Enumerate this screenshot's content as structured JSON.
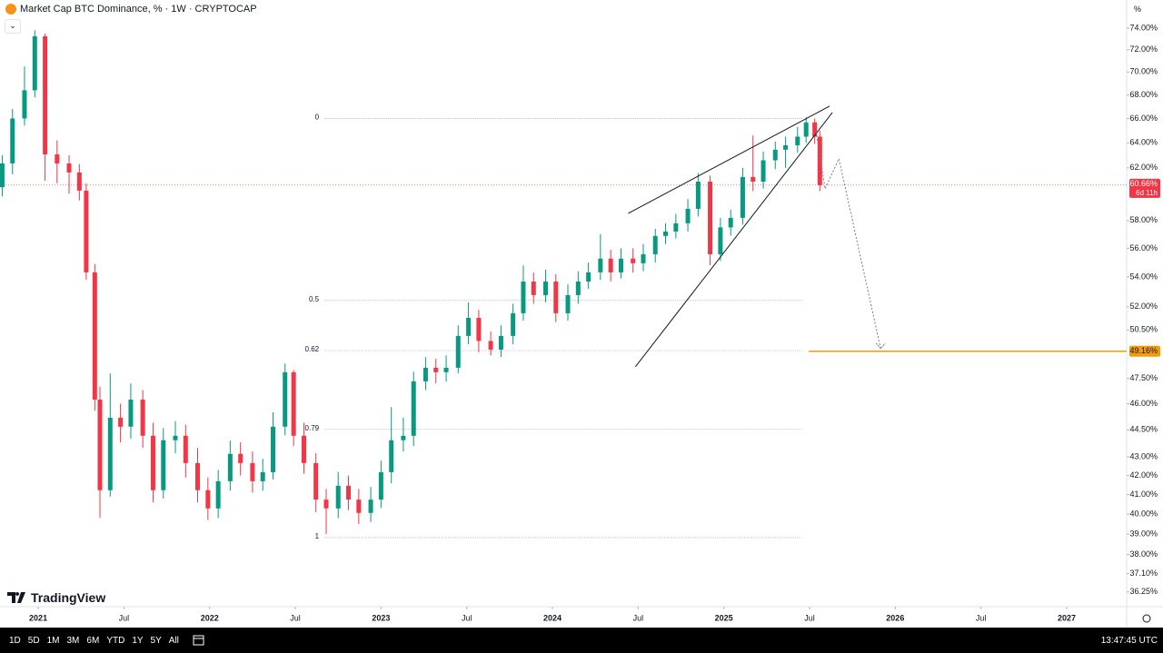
{
  "header": {
    "title": "Market Cap BTC Dominance, % · 1W · CRYPTOCAP",
    "scale_button": "%"
  },
  "chart_data": {
    "type": "candlestick",
    "x": [
      2020.79,
      2020.85,
      2020.92,
      2020.98,
      2021.04,
      2021.11,
      2021.18,
      2021.24,
      2021.28,
      2021.33,
      2021.36,
      2021.42,
      2021.48,
      2021.54,
      2021.61,
      2021.67,
      2021.73,
      2021.8,
      2021.86,
      2021.93,
      2021.99,
      2022.05,
      2022.12,
      2022.18,
      2022.25,
      2022.31,
      2022.37,
      2022.44,
      2022.49,
      2022.55,
      2022.62,
      2022.68,
      2022.75,
      2022.81,
      2022.87,
      2022.94,
      2023.0,
      2023.06,
      2023.13,
      2023.19,
      2023.26,
      2023.32,
      2023.38,
      2023.45,
      2023.51,
      2023.57,
      2023.64,
      2023.7,
      2023.77,
      2023.83,
      2023.89,
      2023.96,
      2024.02,
      2024.09,
      2024.15,
      2024.21,
      2024.28,
      2024.34,
      2024.4,
      2024.47,
      2024.53,
      2024.6,
      2024.66,
      2024.72,
      2024.79,
      2024.85,
      2024.92,
      2024.98,
      2025.04,
      2025.11,
      2025.17,
      2025.23,
      2025.3,
      2025.36,
      2025.43,
      2025.48,
      2025.53,
      2025.56
    ],
    "open": [
      60.5,
      62.35,
      66.0,
      68.4,
      73.24,
      63.07,
      62.35,
      61.64,
      60.24,
      54.32,
      46.24,
      41.23,
      45.19,
      44.68,
      46.24,
      44.17,
      41.23,
      43.92,
      44.17,
      42.67,
      41.23,
      40.29,
      41.7,
      43.17,
      42.67,
      41.7,
      42.18,
      44.68,
      47.87,
      44.17,
      42.67,
      40.74,
      40.29,
      41.46,
      40.74,
      40.06,
      40.74,
      42.18,
      43.92,
      44.17,
      47.32,
      48.14,
      47.87,
      48.14,
      50.12,
      51.28,
      49.8,
      49.26,
      50.12,
      51.58,
      53.69,
      52.78,
      53.69,
      51.58,
      52.78,
      53.69,
      54.32,
      55.27,
      54.32,
      55.27,
      54.95,
      55.58,
      56.88,
      57.2,
      57.8,
      58.87,
      60.93,
      55.58,
      57.5,
      58.2,
      61.29,
      60.93,
      62.6,
      63.44,
      63.8,
      64.5,
      65.67,
      64.5
    ],
    "high": [
      63.0,
      66.8,
      70.5,
      73.8,
      73.5,
      64.2,
      63.0,
      62.3,
      60.8,
      54.9,
      47.0,
      47.8,
      46.0,
      47.2,
      46.8,
      44.9,
      44.6,
      45.0,
      44.8,
      43.5,
      41.9,
      42.3,
      43.9,
      43.8,
      43.3,
      42.9,
      45.5,
      48.4,
      48.0,
      44.9,
      43.2,
      41.3,
      42.2,
      42.0,
      41.3,
      41.4,
      42.8,
      45.8,
      45.2,
      47.9,
      48.8,
      48.7,
      48.9,
      50.8,
      52.3,
      51.8,
      50.4,
      50.8,
      52.2,
      54.8,
      54.3,
      54.5,
      54.2,
      53.5,
      54.4,
      55.0,
      57.0,
      55.9,
      56.0,
      56.0,
      56.3,
      57.4,
      57.8,
      58.5,
      59.6,
      61.6,
      61.4,
      58.2,
      58.8,
      62.0,
      64.6,
      63.3,
      64.1,
      64.5,
      65.3,
      66.1,
      66.0,
      65.0
    ],
    "low": [
      59.8,
      61.5,
      65.4,
      67.8,
      61.0,
      60.8,
      60.0,
      59.5,
      53.8,
      45.6,
      39.8,
      40.9,
      43.8,
      44.0,
      43.5,
      40.6,
      40.8,
      43.2,
      41.9,
      40.6,
      39.7,
      39.8,
      41.2,
      42.0,
      41.1,
      41.2,
      41.8,
      44.2,
      43.6,
      42.1,
      40.1,
      39.0,
      39.8,
      40.2,
      39.5,
      39.6,
      40.3,
      41.6,
      43.3,
      43.6,
      46.8,
      47.2,
      47.3,
      47.8,
      49.6,
      49.1,
      48.9,
      48.8,
      49.6,
      51.1,
      52.2,
      52.3,
      51.0,
      51.1,
      52.2,
      53.2,
      53.8,
      53.7,
      53.9,
      54.3,
      54.4,
      55.0,
      56.3,
      56.7,
      57.2,
      58.3,
      54.8,
      55.1,
      56.9,
      57.7,
      60.2,
      60.4,
      61.9,
      62.0,
      63.2,
      64.0,
      63.9,
      60.2
    ],
    "close": [
      62.35,
      66.0,
      68.4,
      73.24,
      63.07,
      62.35,
      61.64,
      60.24,
      54.32,
      46.24,
      41.23,
      45.19,
      44.68,
      46.24,
      44.17,
      41.23,
      43.92,
      44.17,
      42.67,
      41.23,
      40.29,
      41.7,
      43.17,
      42.67,
      41.7,
      42.18,
      44.68,
      47.87,
      44.17,
      42.67,
      40.74,
      40.29,
      41.46,
      40.74,
      40.06,
      40.74,
      42.18,
      43.92,
      44.17,
      47.32,
      48.14,
      47.87,
      48.14,
      50.12,
      51.28,
      49.8,
      49.26,
      50.12,
      51.58,
      53.69,
      52.78,
      53.69,
      51.58,
      52.78,
      53.69,
      54.32,
      55.27,
      54.32,
      55.27,
      54.95,
      55.58,
      56.88,
      57.2,
      57.8,
      58.87,
      60.93,
      55.58,
      57.5,
      58.2,
      61.29,
      60.93,
      62.6,
      63.44,
      63.8,
      64.5,
      65.67,
      64.5,
      60.66
    ],
    "up_color": "#089981",
    "down_color": "#f23645",
    "log_scale": true,
    "ylim": [
      35.7,
      76.68
    ],
    "yticks": [
      {
        "value": 74,
        "label": "74.00%"
      },
      {
        "value": 72,
        "label": "72.00%"
      },
      {
        "value": 70,
        "label": "70.00%"
      },
      {
        "value": 68,
        "label": "68.00%"
      },
      {
        "value": 66,
        "label": "66.00%"
      },
      {
        "value": 64,
        "label": "64.00%"
      },
      {
        "value": 62,
        "label": "62.00%"
      },
      {
        "value": 58,
        "label": "58.00%"
      },
      {
        "value": 56,
        "label": "56.00%"
      },
      {
        "value": 54,
        "label": "54.00%"
      },
      {
        "value": 52,
        "label": "52.00%"
      },
      {
        "value": 50.5,
        "label": "50.50%"
      },
      {
        "value": 47.5,
        "label": "47.50%"
      },
      {
        "value": 46,
        "label": "46.00%"
      },
      {
        "value": 44.5,
        "label": "44.50%"
      },
      {
        "value": 43,
        "label": "43.00%"
      },
      {
        "value": 42,
        "label": "42.00%"
      },
      {
        "value": 41,
        "label": "41.00%"
      },
      {
        "value": 40,
        "label": "40.00%"
      },
      {
        "value": 39,
        "label": "39.00%"
      },
      {
        "value": 38,
        "label": "38.00%"
      },
      {
        "value": 37.1,
        "label": "37.10%"
      },
      {
        "value": 36.25,
        "label": "36.25%"
      }
    ],
    "xlim": [
      2020.777,
      2027.35
    ],
    "xticks": [
      {
        "value": 2021,
        "label": "2021"
      },
      {
        "value": 2021.5,
        "label": "Jul"
      },
      {
        "value": 2022,
        "label": "2022"
      },
      {
        "value": 2022.5,
        "label": "Jul"
      },
      {
        "value": 2023,
        "label": "2023"
      },
      {
        "value": 2023.5,
        "label": "Jul"
      },
      {
        "value": 2024,
        "label": "2024"
      },
      {
        "value": 2024.5,
        "label": "Jul"
      },
      {
        "value": 2025,
        "label": "2025"
      },
      {
        "value": 2025.5,
        "label": "Jul"
      },
      {
        "value": 2026,
        "label": "2026"
      },
      {
        "value": 2026.5,
        "label": "Jul"
      },
      {
        "value": 2027,
        "label": "2027"
      }
    ],
    "last_price": {
      "value": 60.66,
      "label": "60.66%",
      "countdown": "6d 11h",
      "color": "#f23645"
    },
    "target": {
      "value": 49.16,
      "label": "49.16%",
      "color": "#f59d00",
      "x_start": 2025.495
    },
    "fib": {
      "levels": [
        0,
        0.5,
        0.62,
        0.79,
        1
      ],
      "prices": [
        66.0,
        52.42,
        49.2,
        44.53,
        38.83
      ],
      "x": [
        2022.67,
        2025.46
      ]
    },
    "trendlines": [
      {
        "x": [
          2024.442,
          2025.617
        ],
        "y": [
          58.53,
          67.04
        ]
      },
      {
        "x": [
          2024.484,
          2025.633
        ],
        "y": [
          48.2,
          66.5
        ]
      }
    ],
    "projection": {
      "x": [
        2025.538,
        2025.591,
        2025.671,
        2025.915
      ],
      "y": [
        64.9,
        60.38,
        62.72,
        49.32
      ]
    }
  },
  "footer": {
    "logo": "TradingView",
    "ranges": [
      "1D",
      "5D",
      "1M",
      "3M",
      "6M",
      "YTD",
      "1Y",
      "5Y",
      "All"
    ],
    "clock": "13:47:45 UTC"
  }
}
